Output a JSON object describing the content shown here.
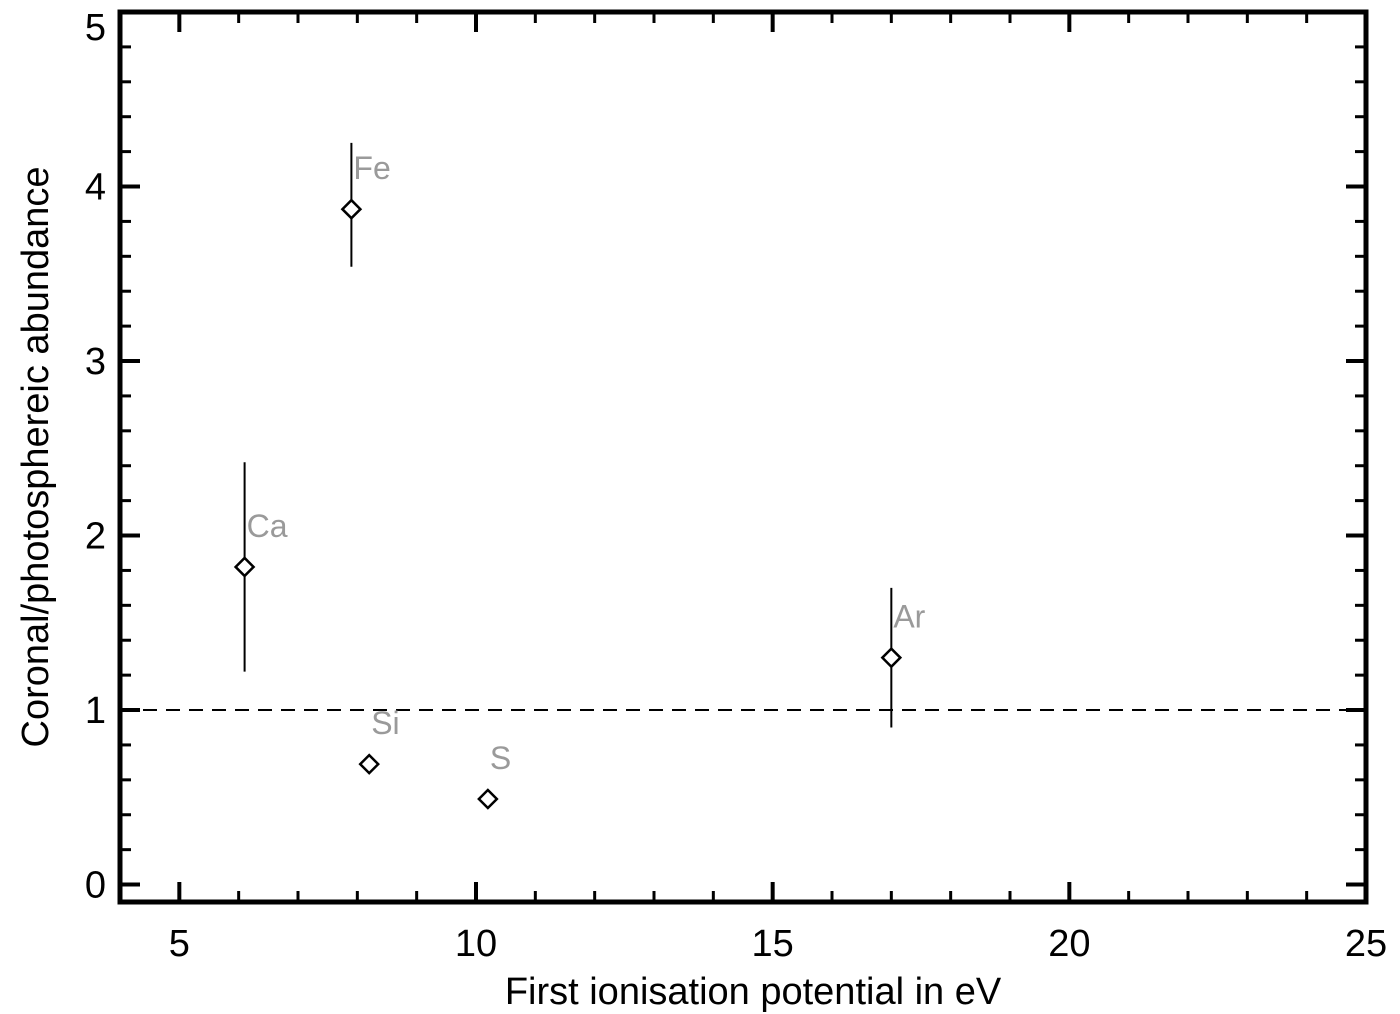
{
  "chart_data": {
    "type": "scatter",
    "title": "",
    "xlabel": "First ionisation potential in eV",
    "ylabel": "Coronal/photosphereic abundance",
    "xlim": [
      4,
      25
    ],
    "ylim": [
      -0.1,
      5
    ],
    "x_major_ticks": [
      5,
      10,
      15,
      20,
      25
    ],
    "x_minor_step": 1,
    "y_major_ticks": [
      0,
      1,
      2,
      3,
      4,
      5
    ],
    "y_minor_step": 0.2,
    "grid": false,
    "legend": "none",
    "reference_line": {
      "y": 1,
      "style": "dashed"
    },
    "marker": "diamond",
    "colors": {
      "axes": "#000000",
      "markers": "#000000",
      "labels": "#9a9a9a"
    },
    "points": [
      {
        "label": "Ca",
        "x": 6.1,
        "y": 1.82,
        "err_low": 1.22,
        "err_high": 2.42
      },
      {
        "label": "Fe",
        "x": 7.9,
        "y": 3.87,
        "err_low": 3.54,
        "err_high": 4.25
      },
      {
        "label": "Si",
        "x": 8.2,
        "y": 0.69
      },
      {
        "label": "S",
        "x": 10.2,
        "y": 0.49
      },
      {
        "label": "Ar",
        "x": 17.0,
        "y": 1.3,
        "err_low": 0.9,
        "err_high": 1.7
      }
    ]
  }
}
